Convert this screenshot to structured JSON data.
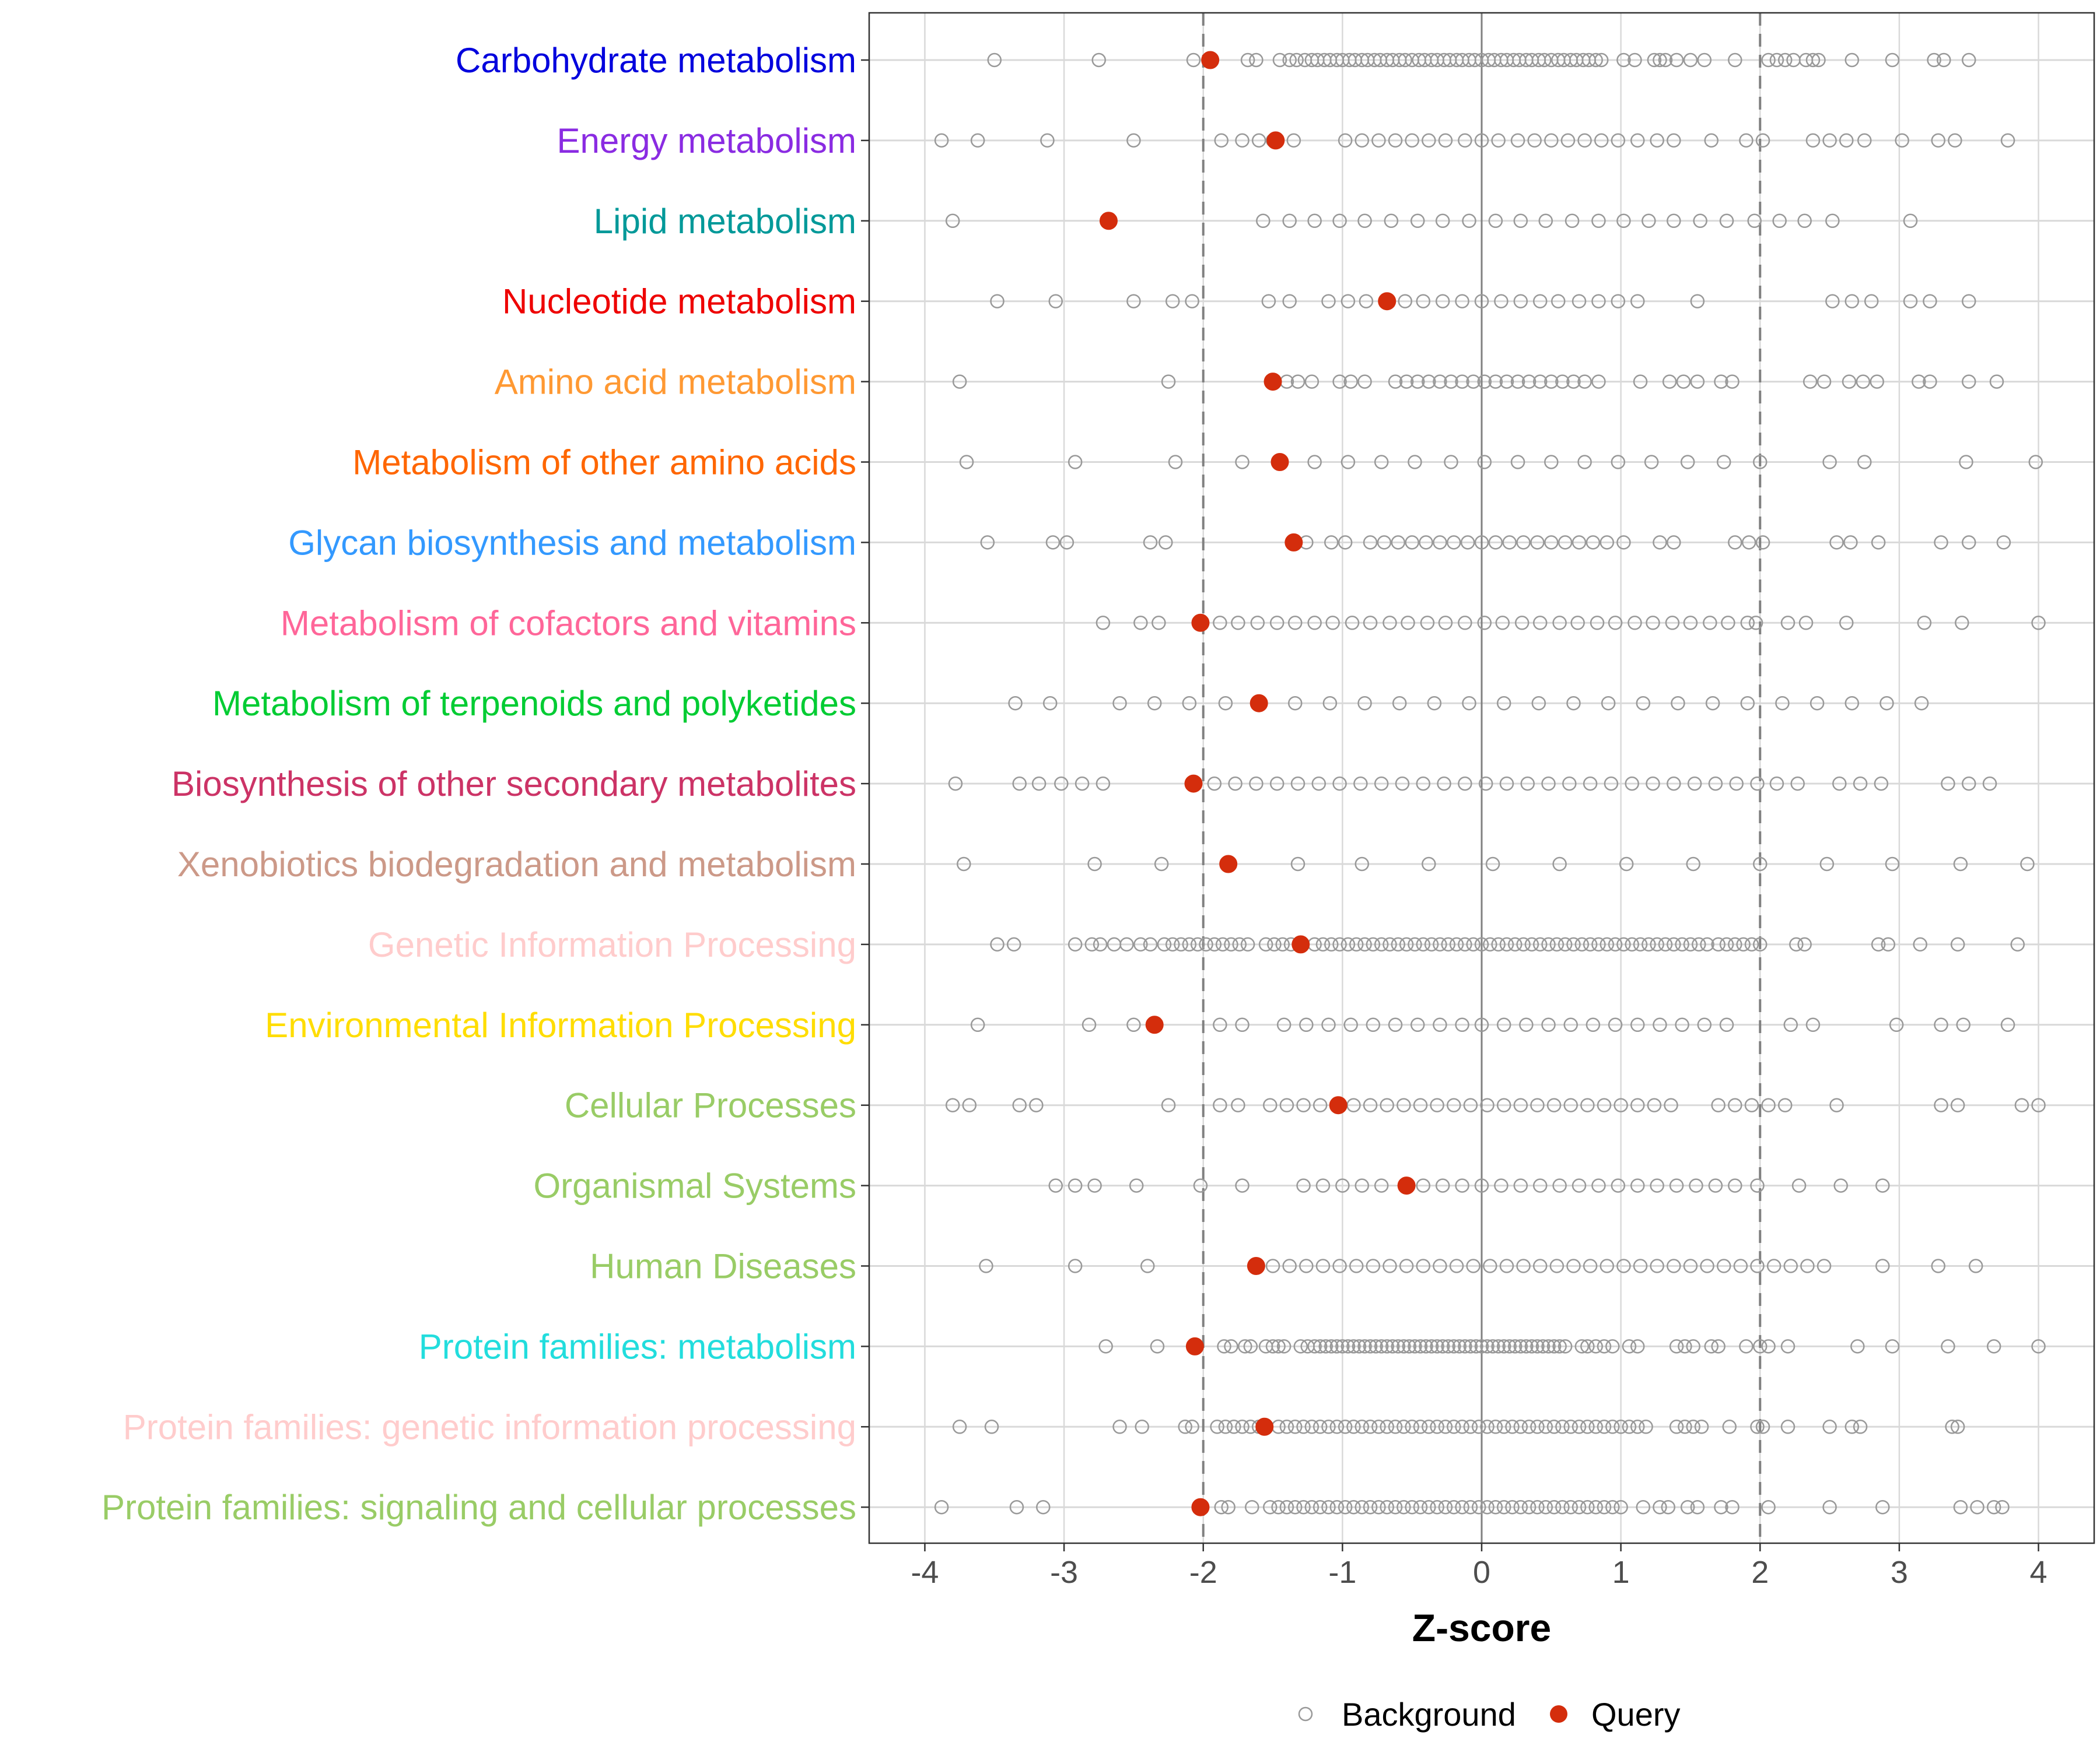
{
  "chart_data": {
    "type": "scatter",
    "xlabel": "Z-score",
    "xlim": [
      -4.4,
      4.4
    ],
    "x_ticks": [
      -4,
      -3,
      -2,
      -1,
      0,
      1,
      2,
      3,
      4
    ],
    "x_tick_labels": [
      "-4",
      "-3",
      "-2",
      "-1",
      "0",
      "1",
      "2",
      "3",
      "4"
    ],
    "reference_lines": {
      "solid": [
        0
      ],
      "dashed": [
        -2,
        2
      ]
    },
    "colors": {
      "background": "#999999",
      "query": "#d42d0c",
      "grid": "#d9d9d9",
      "zero_line": "#808080",
      "dashed_line": "#808080"
    },
    "legend": {
      "position": "bottom",
      "entries": [
        {
          "label": "Background",
          "marker": "open-circle"
        },
        {
          "label": "Query",
          "marker": "filled-circle"
        }
      ]
    },
    "categories": [
      {
        "label": "Carbohydrate metabolism",
        "color": "#0000dd",
        "query": -1.95,
        "background": [
          -3.5,
          -2.75,
          -2.07,
          -1.68,
          -1.62,
          -1.45,
          -1.38,
          -1.33,
          -1.27,
          -1.22,
          -1.18,
          -1.13,
          -1.09,
          -1.04,
          -1.0,
          -0.95,
          -0.91,
          -0.86,
          -0.82,
          -0.77,
          -0.73,
          -0.68,
          -0.64,
          -0.59,
          -0.55,
          -0.5,
          -0.45,
          -0.41,
          -0.36,
          -0.32,
          -0.27,
          -0.23,
          -0.18,
          -0.14,
          -0.09,
          -0.05,
          0.0,
          0.05,
          0.09,
          0.14,
          0.18,
          0.23,
          0.27,
          0.32,
          0.36,
          0.41,
          0.45,
          0.5,
          0.55,
          0.59,
          0.64,
          0.68,
          0.73,
          0.77,
          0.82,
          0.86,
          1.02,
          1.1,
          1.24,
          1.28,
          1.32,
          1.4,
          1.5,
          1.6,
          1.82,
          2.06,
          2.12,
          2.18,
          2.24,
          2.33,
          2.38,
          2.42,
          2.66,
          2.95,
          3.25,
          3.32,
          3.5
        ]
      },
      {
        "label": "Energy metabolism",
        "color": "#8a2be2",
        "query": -1.48,
        "background": [
          -3.88,
          -3.62,
          -3.12,
          -2.5,
          -1.87,
          -1.72,
          -1.6,
          -1.5,
          -1.35,
          -0.98,
          -0.86,
          -0.74,
          -0.62,
          -0.5,
          -0.38,
          -0.26,
          -0.12,
          0.0,
          0.12,
          0.26,
          0.38,
          0.5,
          0.62,
          0.74,
          0.86,
          0.98,
          1.12,
          1.26,
          1.38,
          1.65,
          1.9,
          2.02,
          2.38,
          2.5,
          2.62,
          2.75,
          3.02,
          3.28,
          3.4,
          3.78
        ]
      },
      {
        "label": "Lipid metabolism",
        "color": "#009999",
        "query": -2.68,
        "background": [
          -3.8,
          -1.57,
          -1.38,
          -1.2,
          -1.02,
          -0.84,
          -0.65,
          -0.46,
          -0.28,
          -0.09,
          0.1,
          0.28,
          0.46,
          0.65,
          0.84,
          1.02,
          1.2,
          1.38,
          1.57,
          1.76,
          1.96,
          2.14,
          2.32,
          2.52,
          3.08
        ]
      },
      {
        "label": "Nucleotide metabolism",
        "color": "#ee0000",
        "query": -0.68,
        "background": [
          -3.48,
          -3.06,
          -2.5,
          -2.22,
          -2.08,
          -1.53,
          -1.38,
          -1.1,
          -0.96,
          -0.83,
          -0.55,
          -0.42,
          -0.28,
          -0.14,
          0.0,
          0.14,
          0.28,
          0.42,
          0.55,
          0.7,
          0.84,
          0.98,
          1.12,
          1.55,
          2.52,
          2.66,
          2.8,
          3.08,
          3.22,
          3.5
        ]
      },
      {
        "label": "Amino acid metabolism",
        "color": "#ff9933",
        "query": -1.5,
        "background": [
          -3.75,
          -2.25,
          -1.4,
          -1.32,
          -1.22,
          -1.02,
          -0.94,
          -0.84,
          -0.62,
          -0.54,
          -0.46,
          -0.38,
          -0.3,
          -0.22,
          -0.14,
          -0.06,
          0.02,
          0.1,
          0.18,
          0.26,
          0.34,
          0.42,
          0.5,
          0.58,
          0.66,
          0.74,
          0.84,
          1.14,
          1.35,
          1.45,
          1.55,
          1.72,
          1.8,
          2.36,
          2.46,
          2.64,
          2.74,
          2.84,
          3.14,
          3.22,
          3.5,
          3.7
        ]
      },
      {
        "label": "Metabolism of other amino acids",
        "color": "#ff6600",
        "query": -1.45,
        "background": [
          -3.7,
          -2.92,
          -2.2,
          -1.72,
          -1.2,
          -0.96,
          -0.72,
          -0.48,
          -0.22,
          0.02,
          0.26,
          0.5,
          0.74,
          0.98,
          1.22,
          1.48,
          1.74,
          2.0,
          2.5,
          2.75,
          3.48,
          3.98
        ]
      },
      {
        "label": "Glycan biosynthesis and metabolism",
        "color": "#3399ff",
        "query": -1.35,
        "background": [
          -3.55,
          -3.08,
          -2.98,
          -2.38,
          -2.27,
          -1.26,
          -1.08,
          -0.98,
          -0.8,
          -0.7,
          -0.6,
          -0.5,
          -0.4,
          -0.3,
          -0.2,
          -0.1,
          0.0,
          0.1,
          0.2,
          0.3,
          0.4,
          0.5,
          0.6,
          0.7,
          0.8,
          0.9,
          1.02,
          1.28,
          1.38,
          1.82,
          1.92,
          2.02,
          2.55,
          2.65,
          2.85,
          3.3,
          3.5,
          3.75
        ]
      },
      {
        "label": "Metabolism of cofactors and vitamins",
        "color": "#ff6699",
        "query": -2.02,
        "background": [
          -2.72,
          -2.45,
          -2.32,
          -1.88,
          -1.75,
          -1.61,
          -1.47,
          -1.34,
          -1.2,
          -1.07,
          -0.93,
          -0.8,
          -0.66,
          -0.53,
          -0.39,
          -0.26,
          -0.12,
          0.02,
          0.15,
          0.29,
          0.42,
          0.56,
          0.69,
          0.83,
          0.96,
          1.1,
          1.23,
          1.37,
          1.5,
          1.64,
          1.77,
          1.91,
          1.97,
          2.2,
          2.33,
          2.62,
          3.18,
          3.45,
          4.0
        ]
      },
      {
        "label": "Metabolism of terpenoids and polyketides",
        "color": "#00cc33",
        "query": -1.6,
        "background": [
          -3.35,
          -3.1,
          -2.6,
          -2.35,
          -2.1,
          -1.84,
          -1.34,
          -1.09,
          -0.84,
          -0.59,
          -0.34,
          -0.09,
          0.16,
          0.41,
          0.66,
          0.91,
          1.16,
          1.41,
          1.66,
          1.91,
          2.16,
          2.41,
          2.66,
          2.91,
          3.16
        ]
      },
      {
        "label": "Biosynthesis of other secondary metabolites",
        "color": "#cc3366",
        "query": -2.07,
        "background": [
          -3.78,
          -3.32,
          -3.18,
          -3.02,
          -2.87,
          -2.72,
          -1.92,
          -1.77,
          -1.62,
          -1.47,
          -1.32,
          -1.17,
          -1.02,
          -0.87,
          -0.72,
          -0.57,
          -0.42,
          -0.27,
          -0.12,
          0.03,
          0.18,
          0.33,
          0.48,
          0.63,
          0.78,
          0.93,
          1.08,
          1.23,
          1.38,
          1.53,
          1.68,
          1.83,
          1.98,
          2.12,
          2.27,
          2.57,
          2.72,
          2.87,
          3.35,
          3.5,
          3.65
        ]
      },
      {
        "label": "Xenobiotics biodegradation and metabolism",
        "color": "#cc9988",
        "query": -1.82,
        "background": [
          -3.72,
          -2.78,
          -2.3,
          -1.32,
          -0.86,
          -0.38,
          0.08,
          0.56,
          1.04,
          1.52,
          2.0,
          2.48,
          2.95,
          3.44,
          3.92
        ]
      },
      {
        "label": "Genetic Information Processing",
        "color": "#ffcccc",
        "query": -1.3,
        "background": [
          -3.48,
          -3.36,
          -2.92,
          -2.8,
          -2.74,
          -2.64,
          -2.55,
          -2.45,
          -2.38,
          -2.28,
          -2.22,
          -2.16,
          -2.1,
          -2.04,
          -1.98,
          -1.92,
          -1.86,
          -1.8,
          -1.74,
          -1.68,
          -1.55,
          -1.49,
          -1.43,
          -1.37,
          -1.2,
          -1.14,
          -1.08,
          -1.02,
          -0.96,
          -0.9,
          -0.84,
          -0.78,
          -0.72,
          -0.66,
          -0.6,
          -0.54,
          -0.48,
          -0.42,
          -0.36,
          -0.3,
          -0.24,
          -0.18,
          -0.12,
          -0.06,
          0.0,
          0.06,
          0.12,
          0.18,
          0.24,
          0.3,
          0.36,
          0.42,
          0.48,
          0.54,
          0.6,
          0.66,
          0.72,
          0.78,
          0.84,
          0.9,
          0.96,
          1.02,
          1.08,
          1.14,
          1.2,
          1.26,
          1.32,
          1.38,
          1.44,
          1.5,
          1.56,
          1.62,
          1.7,
          1.76,
          1.82,
          1.88,
          1.94,
          2.0,
          2.26,
          2.32,
          2.85,
          2.92,
          3.15,
          3.42,
          3.85
        ]
      },
      {
        "label": "Environmental Information Processing",
        "color": "#ffdd00",
        "query": -2.35,
        "background": [
          -3.62,
          -2.82,
          -2.5,
          -1.88,
          -1.72,
          -1.42,
          -1.26,
          -1.1,
          -0.94,
          -0.78,
          -0.62,
          -0.46,
          -0.3,
          -0.14,
          0.0,
          0.16,
          0.32,
          0.48,
          0.64,
          0.8,
          0.96,
          1.12,
          1.28,
          1.44,
          1.6,
          1.76,
          2.22,
          2.38,
          2.98,
          3.3,
          3.46,
          3.78
        ]
      },
      {
        "label": "Cellular Processes",
        "color": "#99cc66",
        "query": -1.03,
        "background": [
          -3.8,
          -3.68,
          -3.32,
          -3.2,
          -2.25,
          -1.88,
          -1.75,
          -1.52,
          -1.4,
          -1.28,
          -1.16,
          -0.92,
          -0.8,
          -0.68,
          -0.56,
          -0.44,
          -0.32,
          -0.2,
          -0.08,
          0.04,
          0.16,
          0.28,
          0.4,
          0.52,
          0.64,
          0.76,
          0.88,
          1.0,
          1.12,
          1.24,
          1.36,
          1.7,
          1.82,
          1.94,
          2.06,
          2.18,
          2.55,
          3.3,
          3.42,
          3.88,
          4.0
        ]
      },
      {
        "label": "Organismal Systems",
        "color": "#99cc66",
        "query": -0.54,
        "background": [
          -3.06,
          -2.92,
          -2.78,
          -2.48,
          -2.02,
          -1.72,
          -1.28,
          -1.14,
          -1.0,
          -0.86,
          -0.72,
          -0.42,
          -0.28,
          -0.14,
          0.0,
          0.14,
          0.28,
          0.42,
          0.56,
          0.7,
          0.84,
          0.98,
          1.12,
          1.26,
          1.4,
          1.54,
          1.68,
          1.82,
          1.98,
          2.28,
          2.58,
          2.88
        ]
      },
      {
        "label": "Human Diseases",
        "color": "#99cc66",
        "query": -1.62,
        "background": [
          -3.56,
          -2.92,
          -2.4,
          -1.5,
          -1.38,
          -1.26,
          -1.14,
          -1.02,
          -0.9,
          -0.78,
          -0.66,
          -0.54,
          -0.42,
          -0.3,
          -0.18,
          -0.06,
          0.06,
          0.18,
          0.3,
          0.42,
          0.54,
          0.66,
          0.78,
          0.9,
          1.02,
          1.14,
          1.26,
          1.38,
          1.5,
          1.62,
          1.74,
          1.86,
          1.98,
          2.1,
          2.22,
          2.34,
          2.46,
          2.88,
          3.28,
          3.55
        ]
      },
      {
        "label": "Protein families: metabolism",
        "color": "#22dddd",
        "query": -2.06,
        "background": [
          -2.7,
          -2.33,
          -1.85,
          -1.8,
          -1.7,
          -1.66,
          -1.55,
          -1.5,
          -1.46,
          -1.42,
          -1.3,
          -1.25,
          -1.2,
          -1.16,
          -1.12,
          -1.08,
          -1.04,
          -1.0,
          -0.96,
          -0.92,
          -0.88,
          -0.84,
          -0.8,
          -0.76,
          -0.72,
          -0.68,
          -0.64,
          -0.6,
          -0.56,
          -0.52,
          -0.48,
          -0.44,
          -0.4,
          -0.36,
          -0.32,
          -0.28,
          -0.24,
          -0.2,
          -0.16,
          -0.12,
          -0.08,
          -0.04,
          0.0,
          0.04,
          0.08,
          0.12,
          0.16,
          0.2,
          0.24,
          0.28,
          0.32,
          0.36,
          0.4,
          0.44,
          0.48,
          0.52,
          0.56,
          0.6,
          0.72,
          0.76,
          0.82,
          0.88,
          0.94,
          1.06,
          1.12,
          1.4,
          1.46,
          1.52,
          1.65,
          1.7,
          1.9,
          2.0,
          2.06,
          2.2,
          2.7,
          2.95,
          3.35,
          3.68,
          4.0
        ]
      },
      {
        "label": "Protein families: genetic information processing",
        "color": "#ffcccc",
        "query": -1.56,
        "background": [
          -3.75,
          -3.52,
          -2.6,
          -2.44,
          -2.13,
          -2.08,
          -1.9,
          -1.84,
          -1.78,
          -1.72,
          -1.66,
          -1.6,
          -1.46,
          -1.4,
          -1.34,
          -1.28,
          -1.22,
          -1.16,
          -1.1,
          -1.04,
          -0.98,
          -0.92,
          -0.86,
          -0.8,
          -0.74,
          -0.68,
          -0.62,
          -0.56,
          -0.5,
          -0.44,
          -0.38,
          -0.32,
          -0.26,
          -0.2,
          -0.14,
          -0.08,
          -0.02,
          0.04,
          0.1,
          0.16,
          0.22,
          0.28,
          0.34,
          0.4,
          0.46,
          0.52,
          0.58,
          0.64,
          0.7,
          0.76,
          0.82,
          0.88,
          0.94,
          1.0,
          1.06,
          1.12,
          1.18,
          1.4,
          1.46,
          1.52,
          1.58,
          1.78,
          1.98,
          2.02,
          2.2,
          2.5,
          2.66,
          2.72,
          3.38,
          3.42
        ]
      },
      {
        "label": "Protein families: signaling and cellular processes",
        "color": "#99cc66",
        "query": -2.02,
        "background": [
          -3.88,
          -3.34,
          -3.15,
          -1.87,
          -1.82,
          -1.65,
          -1.52,
          -1.46,
          -1.4,
          -1.34,
          -1.28,
          -1.22,
          -1.16,
          -1.1,
          -1.04,
          -0.98,
          -0.92,
          -0.86,
          -0.8,
          -0.74,
          -0.68,
          -0.62,
          -0.56,
          -0.5,
          -0.44,
          -0.38,
          -0.32,
          -0.26,
          -0.2,
          -0.14,
          -0.08,
          -0.02,
          0.04,
          0.1,
          0.16,
          0.22,
          0.28,
          0.34,
          0.4,
          0.46,
          0.52,
          0.58,
          0.64,
          0.7,
          0.76,
          0.82,
          0.88,
          0.94,
          1.0,
          1.16,
          1.28,
          1.34,
          1.48,
          1.55,
          1.72,
          1.8,
          2.06,
          2.5,
          2.88,
          3.44,
          3.56,
          3.68,
          3.74
        ]
      }
    ]
  }
}
